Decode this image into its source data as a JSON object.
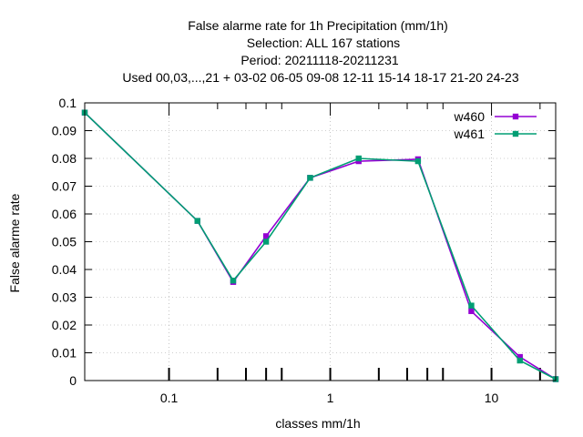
{
  "chart_data": {
    "type": "line",
    "title_lines": [
      "False alarme rate  for 1h Precipitation (mm/1h)",
      "Selection: ALL     167 stations",
      "Period: 20211118-20211231",
      "Used  00,03,...,21  + 03-02 06-05 09-08 12-11 15-14 18-17 21-20 24-23"
    ],
    "xlabel": "classes mm/1h",
    "ylabel": "False alarme rate",
    "x_scale": "log",
    "xlim": [
      0.03,
      25
    ],
    "ylim": [
      0,
      0.1
    ],
    "x_ticks": [
      {
        "value": 0.1,
        "label": "0.1"
      },
      {
        "value": 1,
        "label": "1"
      },
      {
        "value": 10,
        "label": "10"
      }
    ],
    "y_ticks": [
      {
        "value": 0,
        "label": "0"
      },
      {
        "value": 0.01,
        "label": "0.01"
      },
      {
        "value": 0.02,
        "label": "0.02"
      },
      {
        "value": 0.03,
        "label": "0.03"
      },
      {
        "value": 0.04,
        "label": "0.04"
      },
      {
        "value": 0.05,
        "label": "0.05"
      },
      {
        "value": 0.06,
        "label": "0.06"
      },
      {
        "value": 0.07,
        "label": "0.07"
      },
      {
        "value": 0.08,
        "label": "0.08"
      },
      {
        "value": 0.09,
        "label": "0.09"
      },
      {
        "value": 0.1,
        "label": "0.1"
      }
    ],
    "x_minor_ticks": [
      0.2,
      0.3,
      0.4,
      0.5,
      2,
      3,
      4,
      5,
      20
    ],
    "grid": true,
    "legend_position": "top-right",
    "series": [
      {
        "name": "w460",
        "color": "#9400d3",
        "x": [
          0.03,
          0.15,
          0.25,
          0.4,
          0.75,
          1.5,
          3.5,
          7.5,
          15,
          25
        ],
        "y": [
          0.0965,
          0.0575,
          0.0355,
          0.052,
          0.073,
          0.079,
          0.0797,
          0.025,
          0.0085,
          0.0005
        ]
      },
      {
        "name": "w461",
        "color": "#009e73",
        "x": [
          0.03,
          0.15,
          0.25,
          0.4,
          0.75,
          1.5,
          3.5,
          7.5,
          15,
          25
        ],
        "y": [
          0.0965,
          0.0575,
          0.036,
          0.05,
          0.073,
          0.08,
          0.079,
          0.027,
          0.0072,
          0.0005
        ]
      }
    ]
  }
}
